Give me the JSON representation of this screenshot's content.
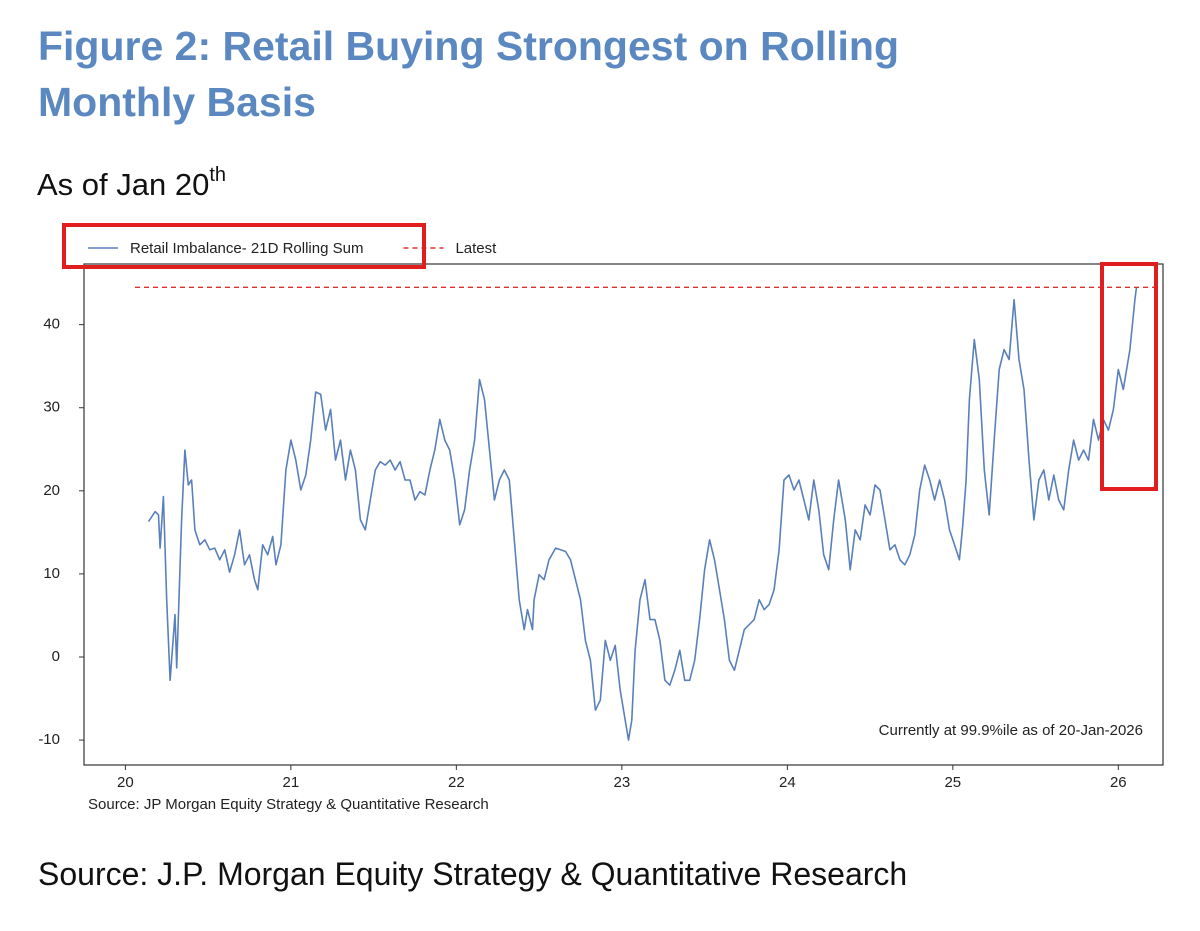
{
  "chart_data": {
    "type": "line",
    "title": "Figure 2: Retail Buying Strongest on Rolling Monthly Basis",
    "subtitle": "As of Jan 20",
    "subtitle_superscript": "th",
    "source_note": "Source: JP Morgan Equity Strategy & Quantitative Research",
    "footer": "Source: J.P. Morgan Equity Strategy & Quantitative Research",
    "annotation": "Currently at 99.9%ile as of 20-Jan-2026",
    "annotation_color": "#e0302e",
    "legend": "top-left-outside",
    "grid": false,
    "xlim": [
      19.75,
      26.27
    ],
    "ylim": [
      -13,
      47.3
    ],
    "xticks": [
      20,
      21,
      22,
      23,
      24,
      25,
      26
    ],
    "yticks": [
      -10,
      0,
      10,
      20,
      30,
      40
    ],
    "x": [
      20.14,
      20.18,
      20.2,
      20.21,
      20.23,
      20.25,
      20.27,
      20.3,
      20.31,
      20.34,
      20.36,
      20.38,
      20.4,
      20.42,
      20.45,
      20.48,
      20.51,
      20.54,
      20.57,
      20.6,
      20.63,
      20.66,
      20.69,
      20.72,
      20.75,
      20.78,
      20.8,
      20.83,
      20.86,
      20.89,
      20.91,
      20.94,
      20.97,
      21.0,
      21.03,
      21.06,
      21.09,
      21.12,
      21.15,
      21.18,
      21.21,
      21.24,
      21.27,
      21.3,
      21.33,
      21.36,
      21.39,
      21.42,
      21.45,
      21.48,
      21.51,
      21.54,
      21.57,
      21.6,
      21.63,
      21.66,
      21.69,
      21.72,
      21.75,
      21.78,
      21.81,
      21.84,
      21.87,
      21.9,
      21.93,
      21.96,
      21.99,
      22.02,
      22.05,
      22.08,
      22.11,
      22.14,
      22.17,
      22.2,
      22.23,
      22.26,
      22.29,
      22.32,
      22.35,
      22.38,
      22.41,
      22.43,
      22.46,
      22.47,
      22.5,
      22.53,
      22.56,
      22.6,
      22.63,
      22.66,
      22.69,
      22.72,
      22.75,
      22.78,
      22.81,
      22.84,
      22.87,
      22.9,
      22.93,
      22.96,
      22.99,
      23.02,
      23.04,
      23.06,
      23.08,
      23.11,
      23.14,
      23.17,
      23.2,
      23.23,
      23.26,
      23.29,
      23.32,
      23.35,
      23.38,
      23.41,
      23.44,
      23.47,
      23.5,
      23.53,
      23.56,
      23.59,
      23.62,
      23.65,
      23.68,
      23.71,
      23.74,
      23.77,
      23.8,
      23.83,
      23.86,
      23.89,
      23.92,
      23.95,
      23.98,
      24.01,
      24.04,
      24.07,
      24.1,
      24.13,
      24.16,
      24.19,
      24.22,
      24.25,
      24.28,
      24.31,
      24.35,
      24.38,
      24.41,
      24.44,
      24.47,
      24.5,
      24.53,
      24.56,
      24.59,
      24.62,
      24.65,
      24.68,
      24.71,
      24.74,
      24.77,
      24.8,
      24.83,
      24.86,
      24.89,
      24.92,
      24.95,
      24.98,
      25.01,
      25.04,
      25.06,
      25.08,
      25.1,
      25.13,
      25.16,
      25.19,
      25.22,
      25.25,
      25.28,
      25.31,
      25.34,
      25.37,
      25.4,
      25.43,
      25.46,
      25.49,
      25.52,
      25.55,
      25.58,
      25.61,
      25.64,
      25.67,
      25.7,
      25.73,
      25.76,
      25.79,
      25.82,
      25.85,
      25.88,
      25.91,
      25.94,
      25.97,
      26.0,
      26.03,
      26.07,
      26.1,
      26.11
    ],
    "series": [
      {
        "name": "Retail Imbalance- 21D Rolling Sum",
        "color": "#5a80bb",
        "values": [
          16.3,
          17.5,
          17.1,
          13.1,
          19.3,
          6.9,
          -2.8,
          5.1,
          -1.3,
          16.5,
          24.9,
          20.7,
          21.3,
          15.3,
          13.5,
          14.1,
          12.9,
          13.1,
          11.7,
          12.9,
          10.2,
          12.3,
          15.3,
          11.1,
          12.3,
          9.3,
          8.1,
          13.5,
          12.3,
          14.5,
          11.1,
          13.5,
          22.5,
          26.1,
          23.7,
          20.1,
          21.9,
          26.1,
          31.9,
          31.6,
          27.3,
          29.8,
          23.7,
          26.1,
          21.3,
          24.9,
          22.5,
          16.5,
          15.3,
          18.9,
          22.5,
          23.5,
          23.1,
          23.7,
          22.5,
          23.5,
          21.3,
          21.3,
          18.9,
          19.9,
          19.5,
          22.5,
          24.9,
          28.6,
          26.1,
          24.9,
          21.3,
          15.9,
          17.7,
          22.5,
          26.1,
          33.4,
          31.0,
          24.9,
          18.9,
          21.3,
          22.5,
          21.3,
          14.1,
          6.9,
          3.3,
          5.7,
          3.3,
          6.9,
          9.9,
          9.3,
          11.7,
          13.1,
          12.9,
          12.7,
          11.7,
          9.3,
          6.9,
          2.0,
          -0.4,
          -6.4,
          -5.2,
          2.0,
          -0.4,
          1.4,
          -4.0,
          -7.6,
          -10.0,
          -7.6,
          0.8,
          6.9,
          9.3,
          4.5,
          4.5,
          2.0,
          -2.8,
          -3.4,
          -1.6,
          0.8,
          -2.8,
          -2.8,
          -0.4,
          4.5,
          10.5,
          14.1,
          11.7,
          8.1,
          4.5,
          -0.4,
          -1.6,
          0.8,
          3.3,
          3.9,
          4.5,
          6.9,
          5.7,
          6.3,
          8.1,
          12.9,
          21.3,
          21.9,
          20.1,
          21.3,
          18.9,
          16.5,
          21.3,
          17.7,
          12.3,
          10.5,
          16.5,
          21.3,
          16.5,
          10.5,
          15.3,
          14.1,
          18.3,
          17.1,
          20.7,
          20.1,
          16.5,
          12.9,
          13.5,
          11.7,
          11.1,
          12.3,
          14.7,
          20.1,
          23.1,
          21.3,
          18.9,
          21.3,
          18.9,
          15.3,
          13.5,
          11.7,
          15.9,
          21.3,
          31.0,
          38.2,
          33.4,
          22.5,
          17.1,
          26.1,
          34.6,
          37.0,
          35.8,
          43.0,
          35.8,
          32.2,
          23.7,
          16.5,
          21.3,
          22.5,
          18.9,
          21.9,
          18.9,
          17.7,
          22.5,
          26.1,
          23.7,
          24.9,
          23.7,
          28.6,
          26.1,
          28.6,
          27.3,
          29.8,
          34.6,
          32.2,
          37.0,
          43.0,
          44.5
        ]
      }
    ],
    "reference_lines": [
      {
        "name": "Latest",
        "value": 44.5,
        "color": "#e0302e",
        "style": "dashed"
      }
    ]
  }
}
